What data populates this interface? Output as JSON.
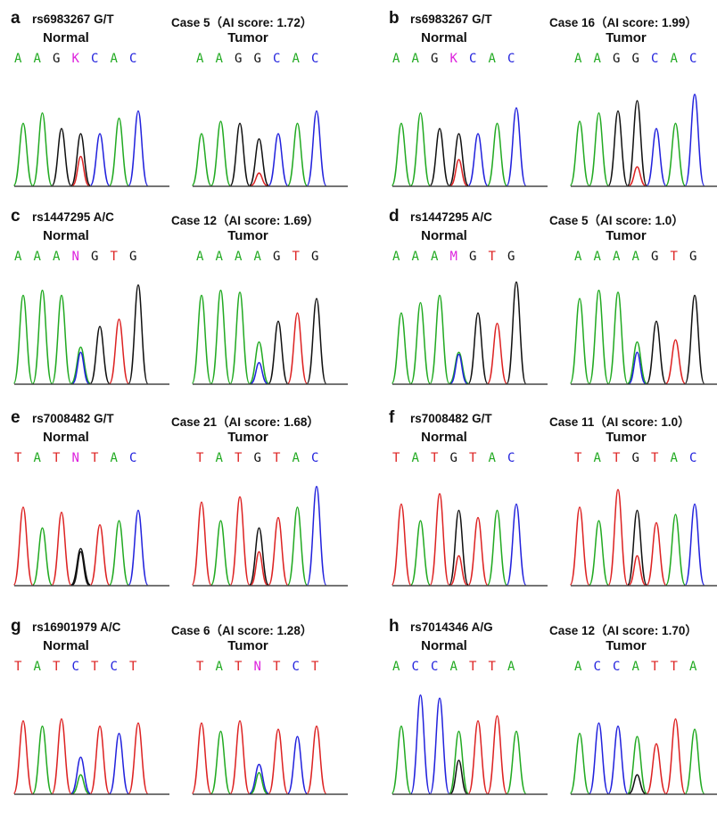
{
  "colors": {
    "A": "#22aa22",
    "C": "#2222dd",
    "G": "#111111",
    "T": "#dd2222",
    "ambiguous": "#dd22dd"
  },
  "sub_labels": {
    "normal": "Normal",
    "tumor": "Tumor"
  },
  "panels": [
    {
      "letter": "a",
      "snp": "rs6983267 G/T",
      "case": "Case 5（AI score:  1.72）",
      "normal_seq": [
        "A",
        "A",
        "G",
        "K",
        "C",
        "A",
        "C"
      ],
      "tumor_seq": [
        "A",
        "A",
        "G",
        "G",
        "C",
        "A",
        "C"
      ]
    },
    {
      "letter": "b",
      "snp": "rs6983267 G/T",
      "case": "Case 16（AI score:  1.99）",
      "normal_seq": [
        "A",
        "A",
        "G",
        "K",
        "C",
        "A",
        "C"
      ],
      "tumor_seq": [
        "A",
        "A",
        "G",
        "G",
        "C",
        "A",
        "C"
      ]
    },
    {
      "letter": "c",
      "snp": "rs1447295 A/C",
      "case": "Case 12（AI score:  1.69）",
      "normal_seq": [
        "A",
        "A",
        "A",
        "N",
        "G",
        "T",
        "G"
      ],
      "tumor_seq": [
        "A",
        "A",
        "A",
        "A",
        "G",
        "T",
        "G"
      ]
    },
    {
      "letter": "d",
      "snp": "rs1447295 A/C",
      "case": "Case 5（AI score:  1.0）",
      "normal_seq": [
        "A",
        "A",
        "A",
        "M",
        "G",
        "T",
        "G"
      ],
      "tumor_seq": [
        "A",
        "A",
        "A",
        "A",
        "G",
        "T",
        "G"
      ]
    },
    {
      "letter": "e",
      "snp": "rs7008482 G/T",
      "case": "Case 21（AI score: 1.68）",
      "normal_seq": [
        "T",
        "A",
        "T",
        "N",
        "T",
        "A",
        "C"
      ],
      "tumor_seq": [
        "T",
        "A",
        "T",
        "G",
        "T",
        "A",
        "C"
      ]
    },
    {
      "letter": "f",
      "snp": "rs7008482 G/T",
      "case": "Case 11（AI score: 1.0）",
      "normal_seq": [
        "T",
        "A",
        "T",
        "G",
        "T",
        "A",
        "C"
      ],
      "tumor_seq": [
        "T",
        "A",
        "T",
        "G",
        "T",
        "A",
        "C"
      ]
    },
    {
      "letter": "g",
      "snp": "rs16901979 A/C",
      "case": "Case 6（AI score:  1.28）",
      "normal_seq": [
        "T",
        "A",
        "T",
        "C",
        "T",
        "C",
        "T"
      ],
      "tumor_seq": [
        "T",
        "A",
        "T",
        "N",
        "T",
        "C",
        "T"
      ]
    },
    {
      "letter": "h",
      "snp": "rs7014346 A/G",
      "case": "Case 12（AI score:  1.70）",
      "normal_seq": [
        "A",
        "C",
        "C",
        "A",
        "T",
        "T",
        "A"
      ],
      "tumor_seq": [
        "A",
        "C",
        "C",
        "A",
        "T",
        "T",
        "A"
      ]
    }
  ]
}
